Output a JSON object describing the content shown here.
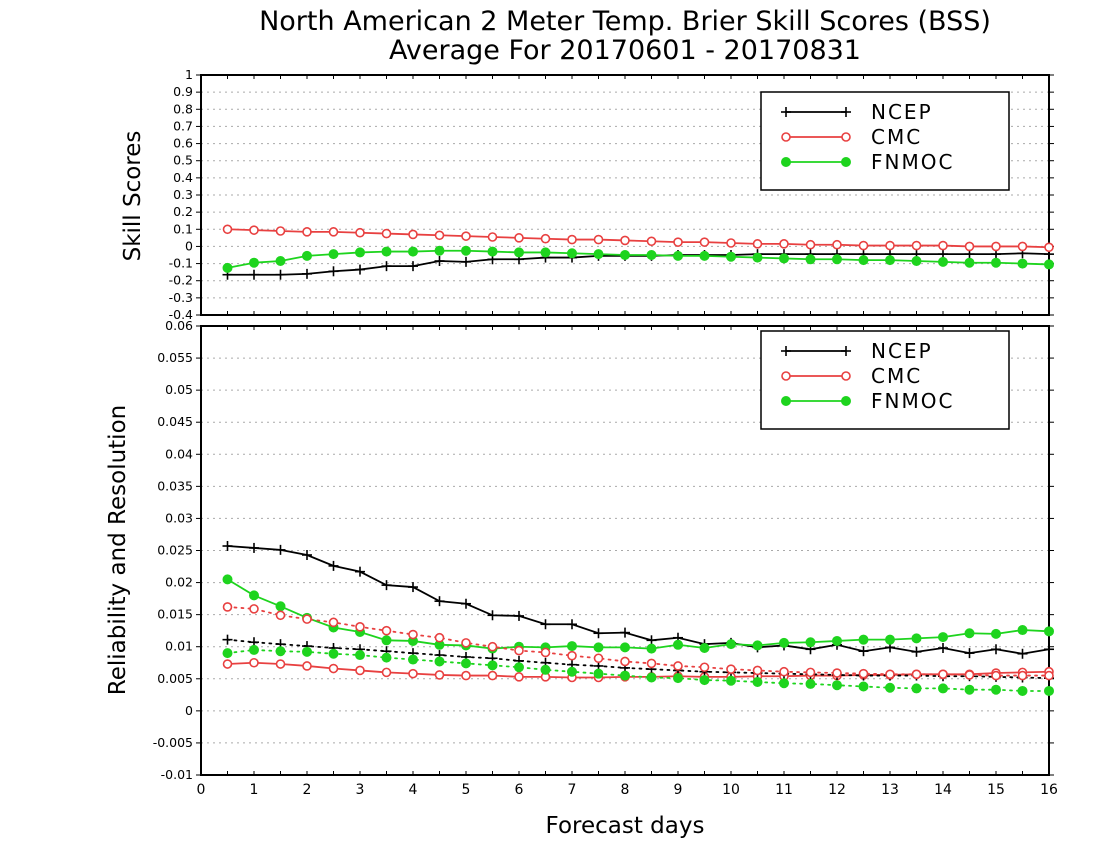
{
  "title": {
    "line1": "North American 2 Meter Temp. Brier Skill Scores (BSS)",
    "line2": "Average For 20170601 - 20170831"
  },
  "colors": {
    "NCEP": "#000000",
    "CMC": "#e84040",
    "FNMOC": "#1ed41e"
  },
  "chart_data": [
    {
      "type": "line",
      "ylabel": "Skill Scores",
      "ylim": [
        -0.4,
        1
      ],
      "yticks": [
        "1",
        "0.9",
        "0.8",
        "0.7",
        "0.6",
        "0.5",
        "0.4",
        "0.3",
        "0.2",
        "0.1",
        "0",
        "-0.1",
        "-0.2",
        "-0.3",
        "-0.4"
      ],
      "grid": true,
      "legend": {
        "position": "top-right",
        "entries": [
          "NCEP",
          "CMC",
          "FNMOC"
        ]
      },
      "x": [
        0.5,
        1,
        1.5,
        2,
        2.5,
        3,
        3.5,
        4,
        4.5,
        5,
        5.5,
        6,
        6.5,
        7,
        7.5,
        8,
        8.5,
        9,
        9.5,
        10,
        10.5,
        11,
        11.5,
        12,
        12.5,
        13,
        13.5,
        14,
        14.5,
        15,
        15.5,
        16
      ],
      "series": [
        {
          "name": "NCEP",
          "marker": "plus",
          "style": "solid",
          "values": [
            -0.165,
            -0.165,
            -0.165,
            -0.16,
            -0.145,
            -0.135,
            -0.115,
            -0.115,
            -0.085,
            -0.09,
            -0.075,
            -0.075,
            -0.065,
            -0.065,
            -0.055,
            -0.055,
            -0.055,
            -0.05,
            -0.05,
            -0.05,
            -0.045,
            -0.045,
            -0.045,
            -0.045,
            -0.045,
            -0.045,
            -0.045,
            -0.045,
            -0.045,
            -0.045,
            -0.04,
            -0.045
          ]
        },
        {
          "name": "CMC",
          "marker": "open-circle",
          "style": "solid",
          "values": [
            0.1,
            0.095,
            0.09,
            0.085,
            0.085,
            0.08,
            0.075,
            0.07,
            0.065,
            0.06,
            0.055,
            0.05,
            0.045,
            0.04,
            0.04,
            0.035,
            0.03,
            0.025,
            0.025,
            0.02,
            0.015,
            0.015,
            0.01,
            0.01,
            0.005,
            0.005,
            0.005,
            0.005,
            0.0,
            0.0,
            0.0,
            -0.005
          ]
        },
        {
          "name": "FNMOC",
          "marker": "filled-circle",
          "style": "solid",
          "values": [
            -0.125,
            -0.095,
            -0.085,
            -0.055,
            -0.045,
            -0.035,
            -0.03,
            -0.03,
            -0.025,
            -0.025,
            -0.03,
            -0.035,
            -0.035,
            -0.04,
            -0.045,
            -0.05,
            -0.05,
            -0.055,
            -0.055,
            -0.06,
            -0.065,
            -0.07,
            -0.075,
            -0.075,
            -0.08,
            -0.08,
            -0.085,
            -0.09,
            -0.095,
            -0.095,
            -0.1,
            -0.105
          ]
        }
      ]
    },
    {
      "type": "line",
      "xlabel": "Forecast days",
      "ylabel": "Reliability and Resolution",
      "xlim": [
        0,
        16
      ],
      "xticks": [
        "0",
        "1",
        "2",
        "3",
        "4",
        "5",
        "6",
        "7",
        "8",
        "9",
        "10",
        "11",
        "12",
        "13",
        "14",
        "15",
        "16"
      ],
      "ylim": [
        -0.01,
        0.06
      ],
      "yticks": [
        "0.06",
        "0.055",
        "0.05",
        "0.045",
        "0.04",
        "0.035",
        "0.03",
        "0.025",
        "0.02",
        "0.015",
        "0.01",
        "0.005",
        "0",
        "-0.005",
        "-0.01"
      ],
      "grid": true,
      "legend": {
        "position": "top-right",
        "entries": [
          "NCEP",
          "CMC",
          "FNMOC"
        ]
      },
      "x": [
        0.5,
        1,
        1.5,
        2,
        2.5,
        3,
        3.5,
        4,
        4.5,
        5,
        5.5,
        6,
        6.5,
        7,
        7.5,
        8,
        8.5,
        9,
        9.5,
        10,
        10.5,
        11,
        11.5,
        12,
        12.5,
        13,
        13.5,
        14,
        14.5,
        15,
        15.5,
        16
      ],
      "series": [
        {
          "name": "NCEP",
          "group": "resolution",
          "marker": "plus",
          "style": "solid",
          "values": [
            0.0257,
            0.0254,
            0.0251,
            0.0243,
            0.0226,
            0.0217,
            0.0196,
            0.0193,
            0.0171,
            0.0167,
            0.0149,
            0.0148,
            0.0135,
            0.0135,
            0.0121,
            0.0122,
            0.011,
            0.0114,
            0.0104,
            0.0106,
            0.0099,
            0.0102,
            0.0096,
            0.0103,
            0.0093,
            0.0099,
            0.0092,
            0.0098,
            0.009,
            0.0096,
            0.0089,
            0.0096
          ]
        },
        {
          "name": "CMC",
          "group": "resolution",
          "marker": "open-circle",
          "style": "solid",
          "values": [
            0.0073,
            0.0075,
            0.0073,
            0.007,
            0.0066,
            0.0063,
            0.006,
            0.0058,
            0.0056,
            0.0055,
            0.0055,
            0.0053,
            0.0053,
            0.0052,
            0.0052,
            0.0053,
            0.0053,
            0.0054,
            0.0053,
            0.0053,
            0.0054,
            0.0054,
            0.0055,
            0.0055,
            0.0056,
            0.0056,
            0.0057,
            0.0057,
            0.0057,
            0.0059,
            0.006,
            0.0061
          ]
        },
        {
          "name": "FNMOC",
          "group": "resolution",
          "marker": "filled-circle",
          "style": "solid",
          "values": [
            0.0205,
            0.018,
            0.0163,
            0.0145,
            0.013,
            0.0123,
            0.011,
            0.0109,
            0.0103,
            0.0102,
            0.0097,
            0.01,
            0.0099,
            0.0101,
            0.0099,
            0.0099,
            0.0097,
            0.0103,
            0.0098,
            0.0104,
            0.0102,
            0.0106,
            0.0107,
            0.0109,
            0.0111,
            0.0111,
            0.0113,
            0.0115,
            0.0121,
            0.012,
            0.0126,
            0.0124
          ]
        },
        {
          "name": "NCEP",
          "group": "reliability",
          "marker": "plus",
          "style": "dotted",
          "values": [
            0.0111,
            0.0107,
            0.0104,
            0.0101,
            0.0098,
            0.0096,
            0.0093,
            0.009,
            0.0087,
            0.0084,
            0.0082,
            0.0078,
            0.0075,
            0.0072,
            0.007,
            0.0067,
            0.0065,
            0.0063,
            0.0061,
            0.006,
            0.0059,
            0.0058,
            0.0057,
            0.0056,
            0.0055,
            0.0055,
            0.0055,
            0.0054,
            0.0054,
            0.0053,
            0.0052,
            0.0051
          ]
        },
        {
          "name": "CMC",
          "group": "reliability",
          "marker": "open-circle",
          "style": "dotted",
          "values": [
            0.0162,
            0.0159,
            0.0149,
            0.0143,
            0.0138,
            0.0131,
            0.0125,
            0.0119,
            0.0114,
            0.0106,
            0.01,
            0.0094,
            0.0091,
            0.0086,
            0.0082,
            0.0077,
            0.0074,
            0.007,
            0.0068,
            0.0065,
            0.0063,
            0.0061,
            0.006,
            0.0059,
            0.0058,
            0.0057,
            0.0057,
            0.0057,
            0.0056,
            0.0055,
            0.0055,
            0.0055
          ]
        },
        {
          "name": "FNMOC",
          "group": "reliability",
          "marker": "filled-circle",
          "style": "dotted",
          "values": [
            0.009,
            0.0095,
            0.0093,
            0.0092,
            0.0089,
            0.0087,
            0.0083,
            0.008,
            0.0077,
            0.0074,
            0.0071,
            0.0068,
            0.0064,
            0.0061,
            0.0058,
            0.0055,
            0.0052,
            0.0051,
            0.0048,
            0.0047,
            0.0045,
            0.0043,
            0.0042,
            0.004,
            0.0038,
            0.0036,
            0.0035,
            0.0035,
            0.0033,
            0.0033,
            0.0031,
            0.0031
          ]
        }
      ]
    }
  ]
}
